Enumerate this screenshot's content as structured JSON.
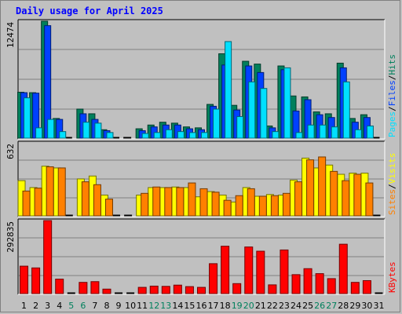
{
  "title": "Daily usage for April 2025",
  "colors": {
    "hits": "#00805c",
    "files": "#0040ff",
    "pages": "#00e0ff",
    "visits": "#ffff00",
    "sites": "#ff8000",
    "kbytes": "#ff0000",
    "weekend_label": "#00805c",
    "weekday_label": "#000000",
    "separator": "#000000"
  },
  "chart_data": [
    {
      "type": "bar",
      "panel": "hits-files-pages",
      "categories": [
        "1",
        "2",
        "3",
        "4",
        "5",
        "6",
        "7",
        "8",
        "9",
        "10",
        "11",
        "12",
        "13",
        "14",
        "15",
        "16",
        "17",
        "18",
        "19",
        "20",
        "21",
        "22",
        "23",
        "24",
        "25",
        "26",
        "27",
        "28",
        "29",
        "30",
        "31"
      ],
      "weekend_days": [
        "5",
        "6",
        "12",
        "13",
        "19",
        "20",
        "26",
        "27"
      ],
      "scale_label": "12474",
      "ylim": [
        0,
        12474
      ],
      "legend": [
        {
          "name": "Pages",
          "color": "#00e0ff"
        },
        {
          "name": "Files",
          "color": "#0040ff"
        },
        {
          "name": "Hits",
          "color": "#00805c"
        }
      ],
      "legend_separator": "/",
      "series": [
        {
          "name": "Hits",
          "values": [
            4900,
            4850,
            12474,
            2100,
            0,
            3100,
            2600,
            900,
            0,
            0,
            1000,
            1400,
            1700,
            1600,
            1200,
            1100,
            3600,
            9000,
            3500,
            8200,
            7900,
            1300,
            7700,
            4500,
            4400,
            2800,
            2600,
            8000,
            2100,
            2500,
            0
          ]
        },
        {
          "name": "Files",
          "values": [
            4850,
            4800,
            12000,
            2000,
            0,
            2600,
            2000,
            800,
            0,
            0,
            800,
            1200,
            1400,
            1400,
            1000,
            900,
            3400,
            7800,
            3000,
            7700,
            7000,
            1100,
            7300,
            2900,
            4100,
            2500,
            2200,
            7500,
            1700,
            2200,
            0
          ]
        },
        {
          "name": "Pages",
          "values": [
            4300,
            1100,
            2000,
            700,
            0,
            1700,
            1600,
            600,
            0,
            0,
            500,
            600,
            900,
            700,
            600,
            600,
            3100,
            10300,
            2300,
            6000,
            5300,
            700,
            7500,
            600,
            1400,
            1400,
            1200,
            6000,
            900,
            1300,
            0
          ]
        }
      ]
    },
    {
      "type": "bar",
      "panel": "visits-sites",
      "categories": [
        "1",
        "2",
        "3",
        "4",
        "5",
        "6",
        "7",
        "8",
        "9",
        "10",
        "11",
        "12",
        "13",
        "14",
        "15",
        "16",
        "17",
        "18",
        "19",
        "20",
        "21",
        "22",
        "23",
        "24",
        "25",
        "26",
        "27",
        "28",
        "29",
        "30",
        "31"
      ],
      "scale_label": "632",
      "ylim": [
        0,
        632
      ],
      "legend": [
        {
          "name": "Sites",
          "color": "#ff8000"
        },
        {
          "name": "Visits",
          "color": "#ffff00"
        }
      ],
      "legend_separator": "/",
      "series": [
        {
          "name": "Visits",
          "values": [
            305,
            245,
            430,
            415,
            0,
            320,
            345,
            180,
            0,
            0,
            180,
            245,
            245,
            250,
            245,
            165,
            210,
            180,
            120,
            245,
            170,
            185,
            180,
            310,
            500,
            415,
            440,
            360,
            370,
            370,
            0
          ]
        },
        {
          "name": "Sites",
          "values": [
            215,
            240,
            425,
            415,
            0,
            295,
            270,
            145,
            0,
            0,
            195,
            250,
            245,
            245,
            285,
            235,
            205,
            135,
            175,
            235,
            170,
            175,
            195,
            295,
            485,
            510,
            385,
            305,
            360,
            285,
            0
          ]
        }
      ]
    },
    {
      "type": "bar",
      "panel": "kbytes",
      "categories": [
        "1",
        "2",
        "3",
        "4",
        "5",
        "6",
        "7",
        "8",
        "9",
        "10",
        "11",
        "12",
        "13",
        "14",
        "15",
        "16",
        "17",
        "18",
        "19",
        "20",
        "21",
        "22",
        "23",
        "24",
        "25",
        "26",
        "27",
        "28",
        "29",
        "30",
        "31"
      ],
      "scale_label": "292835",
      "ylim": [
        0,
        292835
      ],
      "legend": [
        {
          "name": "KBytes",
          "color": "#ff0000"
        }
      ],
      "series": [
        {
          "name": "KBytes",
          "values": [
            110000,
            103000,
            292835,
            58000,
            0,
            45000,
            48000,
            18000,
            0,
            0,
            25000,
            30000,
            29000,
            34000,
            28000,
            25000,
            120000,
            190000,
            40000,
            187000,
            170000,
            35000,
            175000,
            76000,
            100000,
            80000,
            60000,
            198000,
            45000,
            52000,
            0
          ]
        }
      ]
    }
  ]
}
